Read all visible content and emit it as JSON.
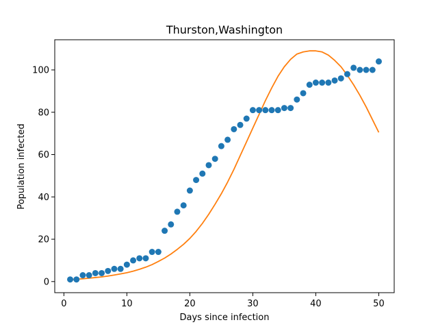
{
  "chart_data": {
    "type": "scatter",
    "title": "Thurston,Washington",
    "xlabel": "Days since infection",
    "ylabel": "Population infected",
    "xlim": [
      -1.45,
      52.45
    ],
    "ylim": [
      -5.25,
      114.25
    ],
    "xticks": [
      0,
      10,
      20,
      30,
      40,
      50
    ],
    "yticks": [
      0,
      20,
      40,
      60,
      80,
      100
    ],
    "grid": false,
    "series": [
      {
        "kind": "scatter",
        "color": "#1f77b4",
        "x": [
          1,
          2,
          3,
          4,
          5,
          6,
          7,
          8,
          9,
          10,
          11,
          12,
          13,
          14,
          15,
          16,
          17,
          18,
          19,
          20,
          21,
          22,
          23,
          24,
          25,
          26,
          27,
          28,
          29,
          30,
          31,
          32,
          33,
          34,
          35,
          36,
          37,
          38,
          39,
          40,
          41,
          42,
          43,
          44,
          45,
          46,
          47,
          48,
          49,
          50
        ],
        "y": [
          1,
          1,
          3,
          3,
          4,
          4,
          5,
          6,
          6,
          8,
          10,
          11,
          11,
          14,
          14,
          24,
          27,
          33,
          36,
          43,
          48,
          51,
          55,
          58,
          64,
          67,
          72,
          74,
          77,
          81,
          81,
          81,
          81,
          81,
          82,
          82,
          86,
          89,
          93,
          94,
          94,
          94,
          95,
          96,
          98,
          101,
          100,
          100,
          100,
          104
        ]
      },
      {
        "kind": "line",
        "color": "#ff7f0e",
        "x": [
          1,
          2,
          3,
          4,
          5,
          6,
          7,
          8,
          9,
          10,
          11,
          12,
          13,
          14,
          15,
          16,
          17,
          18,
          19,
          20,
          21,
          22,
          23,
          24,
          25,
          26,
          27,
          28,
          29,
          30,
          31,
          32,
          33,
          34,
          35,
          36,
          37,
          38,
          39,
          40,
          41,
          42,
          43,
          44,
          45,
          46,
          47,
          48,
          49,
          50
        ],
        "y": [
          1,
          1.1,
          1.3,
          1.6,
          1.9,
          2.2,
          2.6,
          3.1,
          3.6,
          4.2,
          4.9,
          5.8,
          6.8,
          8.0,
          9.5,
          11.1,
          13.0,
          15.2,
          17.6,
          20.4,
          23.7,
          27.5,
          31.8,
          36.5,
          41.5,
          47,
          53,
          59.5,
          66,
          72.5,
          79,
          85.5,
          91.5,
          97,
          101.5,
          105,
          107.5,
          108.5,
          109,
          109,
          108.5,
          107,
          104.5,
          101.5,
          97.5,
          93,
          88,
          82.5,
          76.5,
          70.5
        ]
      }
    ]
  }
}
